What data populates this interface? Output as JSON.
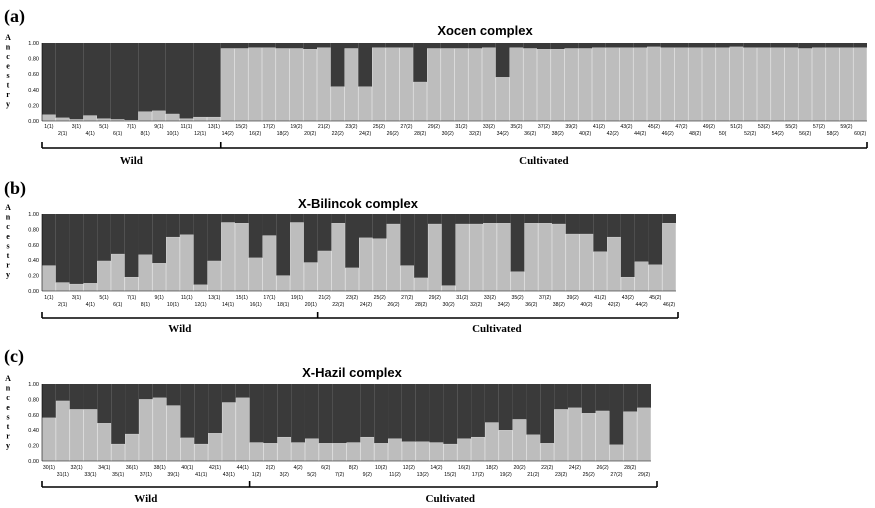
{
  "colors": {
    "lower": "#bdbdbd",
    "upper": "#3a3a3a",
    "bar_edge": "#d8d8d8",
    "axis": "#000000"
  },
  "ylabel_letters": [
    "A",
    "n",
    "c",
    "e",
    "s",
    "t",
    "r",
    "y"
  ],
  "chart_data": [
    {
      "panel_label": "(a)",
      "title": "Xocen complex",
      "type": "bar",
      "stacked": true,
      "ylabel": "Ancestry",
      "ylim": [
        0,
        1
      ],
      "yticks": [
        "0.00",
        "0.20",
        "0.40",
        "0.60",
        "0.80",
        "1.00"
      ],
      "categories": [
        "1(1)",
        "2(1)",
        "3(1)",
        "4(1)",
        "5(1)",
        "6(1)",
        "7(1)",
        "8(1)",
        "9(1)",
        "10(1)",
        "11(1)",
        "12(1)",
        "13(1)",
        "14(2)",
        "15(2)",
        "16(2)",
        "17(2)",
        "18(2)",
        "19(2)",
        "20(2)",
        "21(2)",
        "22(2)",
        "23(2)",
        "24(2)",
        "25(2)",
        "26(2)",
        "27(2)",
        "28(2)",
        "29(2)",
        "30(2)",
        "31(2)",
        "32(2)",
        "33(2)",
        "34(2)",
        "35(2)",
        "36(2)",
        "37(2)",
        "38(2)",
        "39(2)",
        "40(2)",
        "41(2)",
        "42(2)",
        "43(2)",
        "44(2)",
        "45(2)",
        "46(2)",
        "47(2)",
        "48(2)",
        "49(2)",
        "50(",
        "51(2)",
        "52(2)",
        "53(2)",
        "54(2)",
        "55(2)",
        "56(2)",
        "57(2)",
        "58(2)",
        "59(2)",
        "60(2)"
      ],
      "values": [
        0.08,
        0.04,
        0.02,
        0.07,
        0.03,
        0.02,
        0.01,
        0.12,
        0.13,
        0.09,
        0.03,
        0.05,
        0.05,
        0.93,
        0.93,
        0.94,
        0.94,
        0.93,
        0.93,
        0.92,
        0.94,
        0.44,
        0.93,
        0.44,
        0.94,
        0.94,
        0.94,
        0.5,
        0.93,
        0.93,
        0.93,
        0.93,
        0.94,
        0.56,
        0.94,
        0.93,
        0.92,
        0.92,
        0.93,
        0.93,
        0.94,
        0.94,
        0.94,
        0.94,
        0.95,
        0.94,
        0.94,
        0.94,
        0.94,
        0.94,
        0.95,
        0.94,
        0.94,
        0.94,
        0.94,
        0.93,
        0.94,
        0.94,
        0.94,
        0.94
      ],
      "groups": [
        {
          "label": "Wild",
          "count": 13
        },
        {
          "label": "Cultivated",
          "count": 47
        }
      ]
    },
    {
      "panel_label": "(b)",
      "title": "X-Bilincok complex",
      "type": "bar",
      "stacked": true,
      "ylabel": "Ancestry",
      "ylim": [
        0,
        1
      ],
      "yticks": [
        "0.00",
        "0.20",
        "0.40",
        "0.60",
        "0.80",
        "1.00"
      ],
      "categories": [
        "1(1)",
        "2(1)",
        "3(1)",
        "4(1)",
        "5(1)",
        "6(1)",
        "7(1)",
        "8(1)",
        "9(1)",
        "10(1)",
        "11(1)",
        "12(1)",
        "13(1)",
        "14(1)",
        "15(1)",
        "16(1)",
        "17(1)",
        "18(1)",
        "19(1)",
        "20(1)",
        "21(2)",
        "22(2)",
        "23(2)",
        "24(2)",
        "25(2)",
        "26(2)",
        "27(2)",
        "28(2)",
        "29(2)",
        "30(2)",
        "31(2)",
        "32(2)",
        "33(2)",
        "34(2)",
        "35(2)",
        "36(2)",
        "37(2)",
        "38(2)",
        "39(2)",
        "40(2)",
        "41(2)",
        "42(2)",
        "43(2)",
        "44(2)",
        "45(2)",
        "46(2)"
      ],
      "values": [
        0.33,
        0.11,
        0.09,
        0.1,
        0.39,
        0.48,
        0.18,
        0.47,
        0.36,
        0.7,
        0.73,
        0.08,
        0.39,
        0.89,
        0.88,
        0.43,
        0.72,
        0.2,
        0.89,
        0.37,
        0.52,
        0.88,
        0.3,
        0.69,
        0.68,
        0.87,
        0.33,
        0.17,
        0.87,
        0.07,
        0.87,
        0.87,
        0.88,
        0.88,
        0.25,
        0.88,
        0.88,
        0.87,
        0.74,
        0.74,
        0.51,
        0.7,
        0.18,
        0.38,
        0.34,
        0.88
      ],
      "groups": [
        {
          "label": "Wild",
          "count": 20
        },
        {
          "label": "Cultivated",
          "count": 26
        }
      ]
    },
    {
      "panel_label": "(c)",
      "title": "X-Hazil complex",
      "type": "bar",
      "stacked": true,
      "ylabel": "Ancestry",
      "ylim": [
        0,
        1
      ],
      "yticks": [
        "0.00",
        "0.20",
        "0.40",
        "0.60",
        "0.80",
        "1.00"
      ],
      "categories": [
        "30(1)",
        "31(1)",
        "32(1)",
        "33(1)",
        "34(1)",
        "35(1)",
        "36(1)",
        "37(1)",
        "38(1)",
        "39(1)",
        "40(1)",
        "41(1)",
        "42(1)",
        "43(1)",
        "44(1)",
        "1(2)",
        "2(2)",
        "3(2)",
        "4(2)",
        "5(2)",
        "6(2)",
        "7(2)",
        "8(2)",
        "9(2)",
        "10(2)",
        "11(2)",
        "12(2)",
        "13(2)",
        "14(2)",
        "15(2)",
        "16(2)",
        "17(2)",
        "18(2)",
        "19(2)",
        "20(2)",
        "21(2)",
        "22(2)",
        "23(2)",
        "24(2)",
        "25(2)",
        "26(2)",
        "27(2)",
        "28(2)",
        "29(2)"
      ],
      "values": [
        0.56,
        0.78,
        0.67,
        0.67,
        0.49,
        0.22,
        0.35,
        0.8,
        0.82,
        0.72,
        0.3,
        0.22,
        0.36,
        0.76,
        0.82,
        0.24,
        0.23,
        0.31,
        0.24,
        0.29,
        0.23,
        0.23,
        0.24,
        0.31,
        0.23,
        0.29,
        0.25,
        0.25,
        0.24,
        0.22,
        0.29,
        0.31,
        0.5,
        0.4,
        0.54,
        0.34,
        0.23,
        0.67,
        0.69,
        0.62,
        0.65,
        0.21,
        0.64,
        0.69
      ],
      "groups": [
        {
          "label": "Wild",
          "count": 15
        },
        {
          "label": "Cultivated",
          "count": 29
        }
      ]
    }
  ]
}
